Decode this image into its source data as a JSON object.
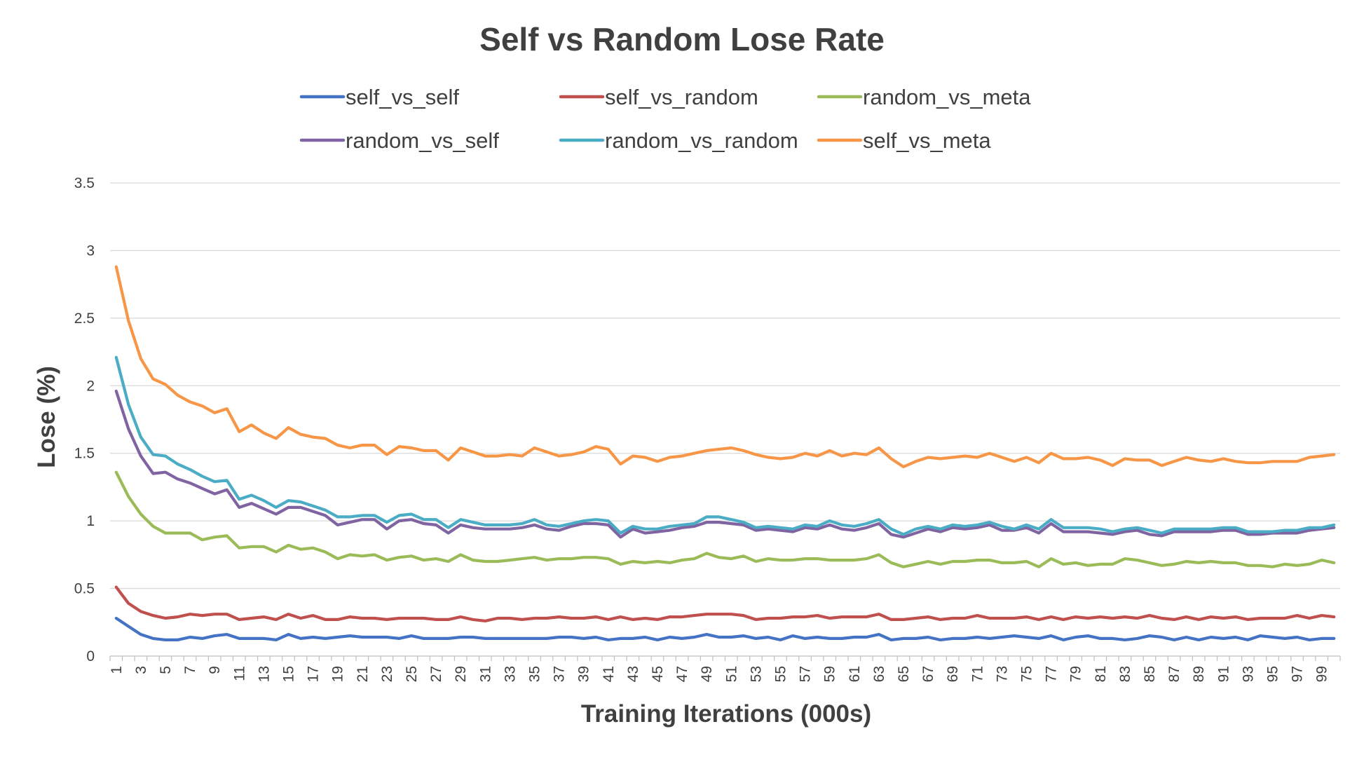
{
  "chart_data": {
    "type": "line",
    "title": "Self vs Random Lose Rate",
    "xlabel": "Training Iterations (000s)",
    "ylabel": "Lose (%)",
    "ylim": [
      0,
      3.5
    ],
    "yticks": [
      "0",
      "0.5",
      "1",
      "1.5",
      "2",
      "2.5",
      "3",
      "3.5"
    ],
    "grid": true,
    "legend_position": "top",
    "x_tick_labels": [
      "1",
      "3",
      "5",
      "7",
      "9",
      "11",
      "13",
      "15",
      "17",
      "19",
      "21",
      "23",
      "25",
      "27",
      "29",
      "31",
      "33",
      "35",
      "37",
      "39",
      "41",
      "43",
      "45",
      "47",
      "49",
      "51",
      "53",
      "55",
      "57",
      "59",
      "61",
      "63",
      "65",
      "67",
      "69",
      "71",
      "73",
      "75",
      "77",
      "79",
      "81",
      "83",
      "85",
      "87",
      "89",
      "91",
      "93",
      "95",
      "97",
      "99"
    ],
    "series": [
      {
        "name": "self_vs_self",
        "color": "#4472C4",
        "values": [
          0.28,
          0.22,
          0.16,
          0.13,
          0.12,
          0.12,
          0.14,
          0.13,
          0.15,
          0.16,
          0.13,
          0.13,
          0.13,
          0.12,
          0.16,
          0.13,
          0.14,
          0.13,
          0.14,
          0.15,
          0.14,
          0.14,
          0.14,
          0.13,
          0.15,
          0.13,
          0.13,
          0.13,
          0.14,
          0.14,
          0.13,
          0.13,
          0.13,
          0.13,
          0.13,
          0.13,
          0.14,
          0.14,
          0.13,
          0.14,
          0.12,
          0.13,
          0.13,
          0.14,
          0.12,
          0.14,
          0.13,
          0.14,
          0.16,
          0.14,
          0.14,
          0.15,
          0.13,
          0.14,
          0.12,
          0.15,
          0.13,
          0.14,
          0.13,
          0.13,
          0.14,
          0.14,
          0.16,
          0.12,
          0.13,
          0.13,
          0.14,
          0.12,
          0.13,
          0.13,
          0.14,
          0.13,
          0.14,
          0.15,
          0.14,
          0.13,
          0.15,
          0.12,
          0.14,
          0.15,
          0.13,
          0.13,
          0.12,
          0.13,
          0.15,
          0.14,
          0.12,
          0.14,
          0.12,
          0.14,
          0.13,
          0.14,
          0.12,
          0.15,
          0.14,
          0.13,
          0.14,
          0.12,
          0.13,
          0.13
        ]
      },
      {
        "name": "self_vs_random",
        "color": "#C0504D",
        "values": [
          0.51,
          0.39,
          0.33,
          0.3,
          0.28,
          0.29,
          0.31,
          0.3,
          0.31,
          0.31,
          0.27,
          0.28,
          0.29,
          0.27,
          0.31,
          0.28,
          0.3,
          0.27,
          0.27,
          0.29,
          0.28,
          0.28,
          0.27,
          0.28,
          0.28,
          0.28,
          0.27,
          0.27,
          0.29,
          0.27,
          0.26,
          0.28,
          0.28,
          0.27,
          0.28,
          0.28,
          0.29,
          0.28,
          0.28,
          0.29,
          0.27,
          0.29,
          0.27,
          0.28,
          0.27,
          0.29,
          0.29,
          0.3,
          0.31,
          0.31,
          0.31,
          0.3,
          0.27,
          0.28,
          0.28,
          0.29,
          0.29,
          0.3,
          0.28,
          0.29,
          0.29,
          0.29,
          0.31,
          0.27,
          0.27,
          0.28,
          0.29,
          0.27,
          0.28,
          0.28,
          0.3,
          0.28,
          0.28,
          0.28,
          0.29,
          0.27,
          0.29,
          0.27,
          0.29,
          0.28,
          0.29,
          0.28,
          0.29,
          0.28,
          0.3,
          0.28,
          0.27,
          0.29,
          0.27,
          0.29,
          0.28,
          0.29,
          0.27,
          0.28,
          0.28,
          0.28,
          0.3,
          0.28,
          0.3,
          0.29
        ]
      },
      {
        "name": "random_vs_meta",
        "color": "#9BBB59",
        "values": [
          1.36,
          1.18,
          1.05,
          0.96,
          0.91,
          0.91,
          0.91,
          0.86,
          0.88,
          0.89,
          0.8,
          0.81,
          0.81,
          0.77,
          0.82,
          0.79,
          0.8,
          0.77,
          0.72,
          0.75,
          0.74,
          0.75,
          0.71,
          0.73,
          0.74,
          0.71,
          0.72,
          0.7,
          0.75,
          0.71,
          0.7,
          0.7,
          0.71,
          0.72,
          0.73,
          0.71,
          0.72,
          0.72,
          0.73,
          0.73,
          0.72,
          0.68,
          0.7,
          0.69,
          0.7,
          0.69,
          0.71,
          0.72,
          0.76,
          0.73,
          0.72,
          0.74,
          0.7,
          0.72,
          0.71,
          0.71,
          0.72,
          0.72,
          0.71,
          0.71,
          0.71,
          0.72,
          0.75,
          0.69,
          0.66,
          0.68,
          0.7,
          0.68,
          0.7,
          0.7,
          0.71,
          0.71,
          0.69,
          0.69,
          0.7,
          0.66,
          0.72,
          0.68,
          0.69,
          0.67,
          0.68,
          0.68,
          0.72,
          0.71,
          0.69,
          0.67,
          0.68,
          0.7,
          0.69,
          0.7,
          0.69,
          0.69,
          0.67,
          0.67,
          0.66,
          0.68,
          0.67,
          0.68,
          0.71,
          0.69
        ]
      },
      {
        "name": "random_vs_self",
        "color": "#8064A2",
        "values": [
          1.96,
          1.68,
          1.48,
          1.35,
          1.36,
          1.31,
          1.28,
          1.24,
          1.2,
          1.23,
          1.1,
          1.13,
          1.09,
          1.05,
          1.1,
          1.1,
          1.07,
          1.04,
          0.97,
          0.99,
          1.01,
          1.01,
          0.94,
          1.0,
          1.01,
          0.98,
          0.97,
          0.91,
          0.97,
          0.95,
          0.94,
          0.94,
          0.94,
          0.95,
          0.97,
          0.94,
          0.93,
          0.96,
          0.98,
          0.98,
          0.97,
          0.88,
          0.94,
          0.91,
          0.92,
          0.93,
          0.95,
          0.96,
          0.99,
          0.99,
          0.98,
          0.97,
          0.93,
          0.94,
          0.93,
          0.92,
          0.95,
          0.94,
          0.97,
          0.94,
          0.93,
          0.95,
          0.98,
          0.9,
          0.88,
          0.91,
          0.94,
          0.92,
          0.95,
          0.94,
          0.95,
          0.97,
          0.93,
          0.93,
          0.95,
          0.91,
          0.98,
          0.92,
          0.92,
          0.92,
          0.91,
          0.9,
          0.92,
          0.93,
          0.9,
          0.89,
          0.92,
          0.92,
          0.92,
          0.92,
          0.93,
          0.93,
          0.9,
          0.9,
          0.91,
          0.91,
          0.91,
          0.93,
          0.94,
          0.95
        ]
      },
      {
        "name": "random_vs_random",
        "color": "#4BACC6",
        "values": [
          2.21,
          1.86,
          1.62,
          1.49,
          1.48,
          1.42,
          1.38,
          1.33,
          1.29,
          1.3,
          1.16,
          1.19,
          1.15,
          1.1,
          1.15,
          1.14,
          1.11,
          1.08,
          1.03,
          1.03,
          1.04,
          1.04,
          0.99,
          1.04,
          1.05,
          1.01,
          1.01,
          0.95,
          1.01,
          0.99,
          0.97,
          0.97,
          0.97,
          0.98,
          1.01,
          0.97,
          0.96,
          0.98,
          1.0,
          1.01,
          1.0,
          0.91,
          0.96,
          0.94,
          0.94,
          0.96,
          0.97,
          0.98,
          1.03,
          1.03,
          1.01,
          0.99,
          0.95,
          0.96,
          0.95,
          0.94,
          0.97,
          0.96,
          1.0,
          0.97,
          0.96,
          0.98,
          1.01,
          0.94,
          0.9,
          0.94,
          0.96,
          0.94,
          0.97,
          0.96,
          0.97,
          0.99,
          0.96,
          0.94,
          0.97,
          0.94,
          1.01,
          0.95,
          0.95,
          0.95,
          0.94,
          0.92,
          0.94,
          0.95,
          0.93,
          0.91,
          0.94,
          0.94,
          0.94,
          0.94,
          0.95,
          0.95,
          0.92,
          0.92,
          0.92,
          0.93,
          0.93,
          0.95,
          0.95,
          0.97
        ]
      },
      {
        "name": "self_vs_meta",
        "color": "#F79646",
        "values": [
          2.88,
          2.48,
          2.2,
          2.05,
          2.01,
          1.93,
          1.88,
          1.85,
          1.8,
          1.83,
          1.66,
          1.71,
          1.65,
          1.61,
          1.69,
          1.64,
          1.62,
          1.61,
          1.56,
          1.54,
          1.56,
          1.56,
          1.49,
          1.55,
          1.54,
          1.52,
          1.52,
          1.45,
          1.54,
          1.51,
          1.48,
          1.48,
          1.49,
          1.48,
          1.54,
          1.51,
          1.48,
          1.49,
          1.51,
          1.55,
          1.53,
          1.42,
          1.48,
          1.47,
          1.44,
          1.47,
          1.48,
          1.5,
          1.52,
          1.53,
          1.54,
          1.52,
          1.49,
          1.47,
          1.46,
          1.47,
          1.5,
          1.48,
          1.52,
          1.48,
          1.5,
          1.49,
          1.54,
          1.46,
          1.4,
          1.44,
          1.47,
          1.46,
          1.47,
          1.48,
          1.47,
          1.5,
          1.47,
          1.44,
          1.47,
          1.43,
          1.5,
          1.46,
          1.46,
          1.47,
          1.45,
          1.41,
          1.46,
          1.45,
          1.45,
          1.41,
          1.44,
          1.47,
          1.45,
          1.44,
          1.46,
          1.44,
          1.43,
          1.43,
          1.44,
          1.44,
          1.44,
          1.47,
          1.48,
          1.49
        ]
      }
    ]
  }
}
